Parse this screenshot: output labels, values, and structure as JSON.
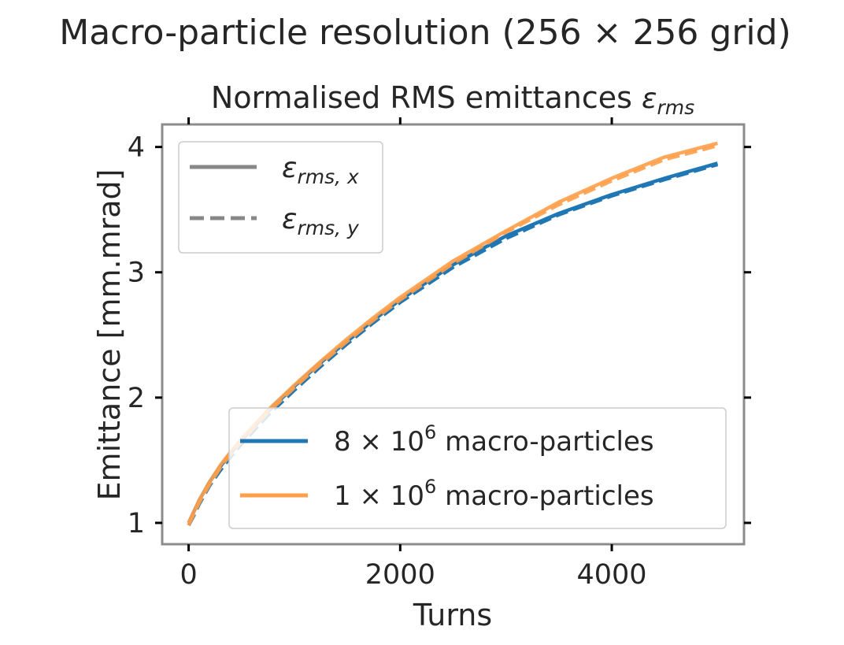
{
  "figure": {
    "suptitle": "Macro-particle resolution (256 × 256 grid)"
  },
  "chart_data": {
    "type": "line",
    "title_prefix": "Normalised RMS emittances ",
    "title_symbol": "ε",
    "title_subscript": "rms",
    "xlabel": "Turns",
    "ylabel": "Emittance [mm.mrad]",
    "xlim": [
      -250,
      5250
    ],
    "ylim": [
      0.83,
      4.18
    ],
    "xticks": [
      0,
      2000,
      4000
    ],
    "yticks": [
      1,
      2,
      3,
      4
    ],
    "xtick_labels": [
      "0",
      "2000",
      "4000"
    ],
    "ytick_labels": [
      "1",
      "2",
      "3",
      "4"
    ],
    "grid": false,
    "colors": {
      "blue": "#1f77b4",
      "orange": "#ff9f4a",
      "linestyle_key": "#888888",
      "frame": "#8c8c8c"
    },
    "style_legend": {
      "placement": "upper-left",
      "entries": [
        {
          "dash": "solid",
          "symbol": "ε",
          "subscript": "rms, x"
        },
        {
          "dash": "dashed",
          "symbol": "ε",
          "subscript": "rms, y"
        }
      ]
    },
    "series_legend": {
      "placement": "lower-right",
      "entries": [
        {
          "prefix": "8 × 10",
          "exp": "6",
          "suffix": " macro-particles",
          "color": "#1f77b4"
        },
        {
          "prefix": "1 × 10",
          "exp": "6",
          "suffix": " macro-particles",
          "color": "#ff9f4a"
        }
      ]
    },
    "x": [
      0,
      50,
      100,
      200,
      300,
      400,
      500,
      750,
      1000,
      1250,
      1500,
      1750,
      2000,
      2500,
      3000,
      3500,
      4000,
      4500,
      5000
    ],
    "series": [
      {
        "name": "8 × 10^6 macro-particles",
        "component": "x",
        "dash": "solid",
        "color": "#1f77b4",
        "values": [
          1.0,
          1.09,
          1.18,
          1.33,
          1.45,
          1.56,
          1.66,
          1.89,
          2.09,
          2.28,
          2.45,
          2.62,
          2.78,
          3.06,
          3.29,
          3.47,
          3.62,
          3.75,
          3.87
        ]
      },
      {
        "name": "8 × 10^6 macro-particles",
        "component": "y",
        "dash": "dashed",
        "color": "#1f77b4",
        "values": [
          0.98,
          1.06,
          1.15,
          1.3,
          1.42,
          1.53,
          1.63,
          1.86,
          2.06,
          2.25,
          2.43,
          2.6,
          2.76,
          3.04,
          3.27,
          3.46,
          3.61,
          3.74,
          3.86
        ]
      },
      {
        "name": "1 × 10^6 macro-particles",
        "component": "x",
        "dash": "solid",
        "color": "#ff9f4a",
        "values": [
          1.0,
          1.09,
          1.18,
          1.33,
          1.46,
          1.57,
          1.67,
          1.9,
          2.1,
          2.29,
          2.47,
          2.64,
          2.8,
          3.09,
          3.33,
          3.56,
          3.75,
          3.92,
          4.03
        ]
      },
      {
        "name": "1 × 10^6 macro-particles",
        "component": "y",
        "dash": "dashed",
        "color": "#ff9f4a",
        "values": [
          0.98,
          1.07,
          1.16,
          1.31,
          1.44,
          1.55,
          1.65,
          1.88,
          2.08,
          2.27,
          2.45,
          2.62,
          2.78,
          3.07,
          3.32,
          3.54,
          3.73,
          3.9,
          4.01
        ]
      }
    ]
  }
}
